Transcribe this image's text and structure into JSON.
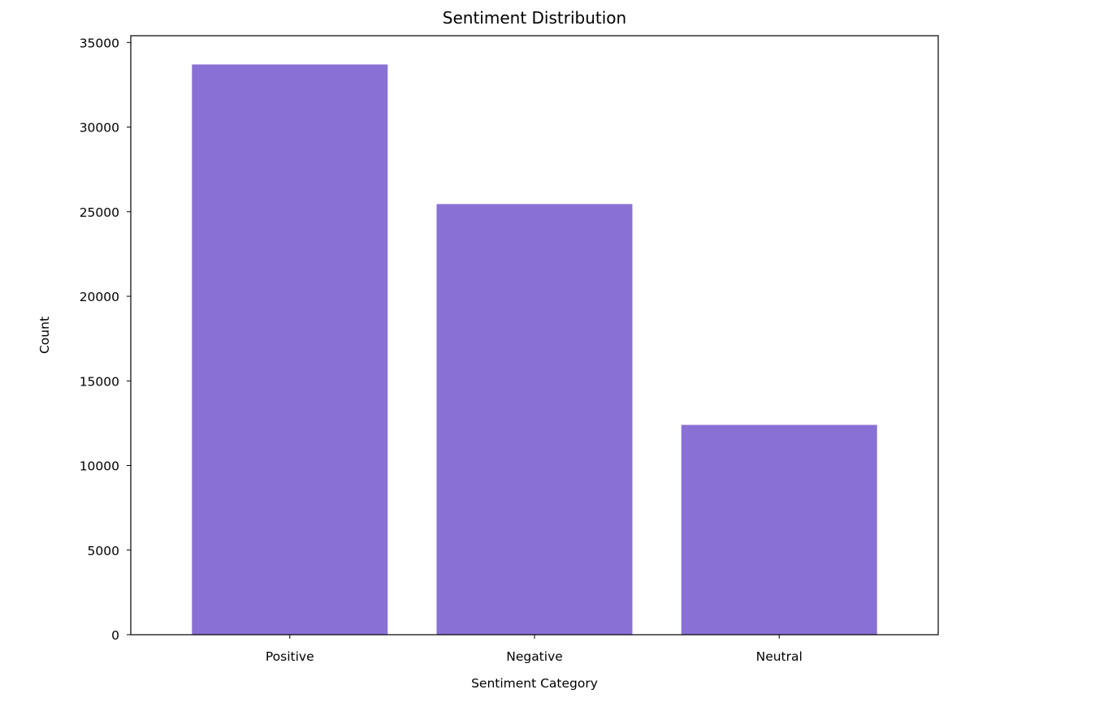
{
  "chart_data": {
    "type": "bar",
    "title": "Sentiment Distribution",
    "xlabel": "Sentiment Category",
    "ylabel": "Count",
    "categories": [
      "Positive",
      "Negative",
      "Neutral"
    ],
    "values": [
      33700,
      25450,
      12400
    ],
    "ylim": [
      0,
      35400
    ],
    "yticks": [
      0,
      5000,
      10000,
      15000,
      20000,
      25000,
      30000,
      35000
    ],
    "grid": false,
    "legend": "none",
    "bar_color": "#8970d4"
  }
}
